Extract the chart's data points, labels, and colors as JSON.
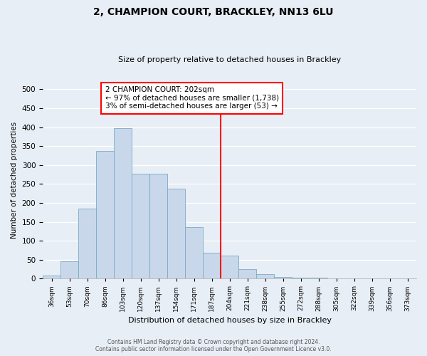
{
  "title": "2, CHAMPION COURT, BRACKLEY, NN13 6LU",
  "subtitle": "Size of property relative to detached houses in Brackley",
  "xlabel": "Distribution of detached houses by size in Brackley",
  "ylabel": "Number of detached properties",
  "footer_line1": "Contains HM Land Registry data © Crown copyright and database right 2024.",
  "footer_line2": "Contains public sector information licensed under the Open Government Licence v3.0.",
  "bar_labels": [
    "36sqm",
    "53sqm",
    "70sqm",
    "86sqm",
    "103sqm",
    "120sqm",
    "137sqm",
    "154sqm",
    "171sqm",
    "187sqm",
    "204sqm",
    "221sqm",
    "238sqm",
    "255sqm",
    "272sqm",
    "288sqm",
    "305sqm",
    "322sqm",
    "339sqm",
    "356sqm",
    "373sqm"
  ],
  "bar_values": [
    8,
    46,
    185,
    337,
    397,
    277,
    277,
    237,
    135,
    68,
    60,
    25,
    11,
    5,
    3,
    2,
    1,
    1,
    0,
    0,
    1
  ],
  "bar_color": "#c8d8ea",
  "bar_edge_color": "#7aaac8",
  "vline_x_index": 10,
  "vline_color": "red",
  "annotation_title": "2 CHAMPION COURT: 202sqm",
  "annotation_line1": "← 97% of detached houses are smaller (1,738)",
  "annotation_line2": "3% of semi-detached houses are larger (53) →",
  "annotation_box_color": "red",
  "ylim": [
    0,
    520
  ],
  "yticks": [
    0,
    50,
    100,
    150,
    200,
    250,
    300,
    350,
    400,
    450,
    500
  ],
  "bg_color": "#e8eef5",
  "plot_bg_color": "#e8eef5",
  "grid_color": "white",
  "title_fontsize": 10,
  "subtitle_fontsize": 8
}
